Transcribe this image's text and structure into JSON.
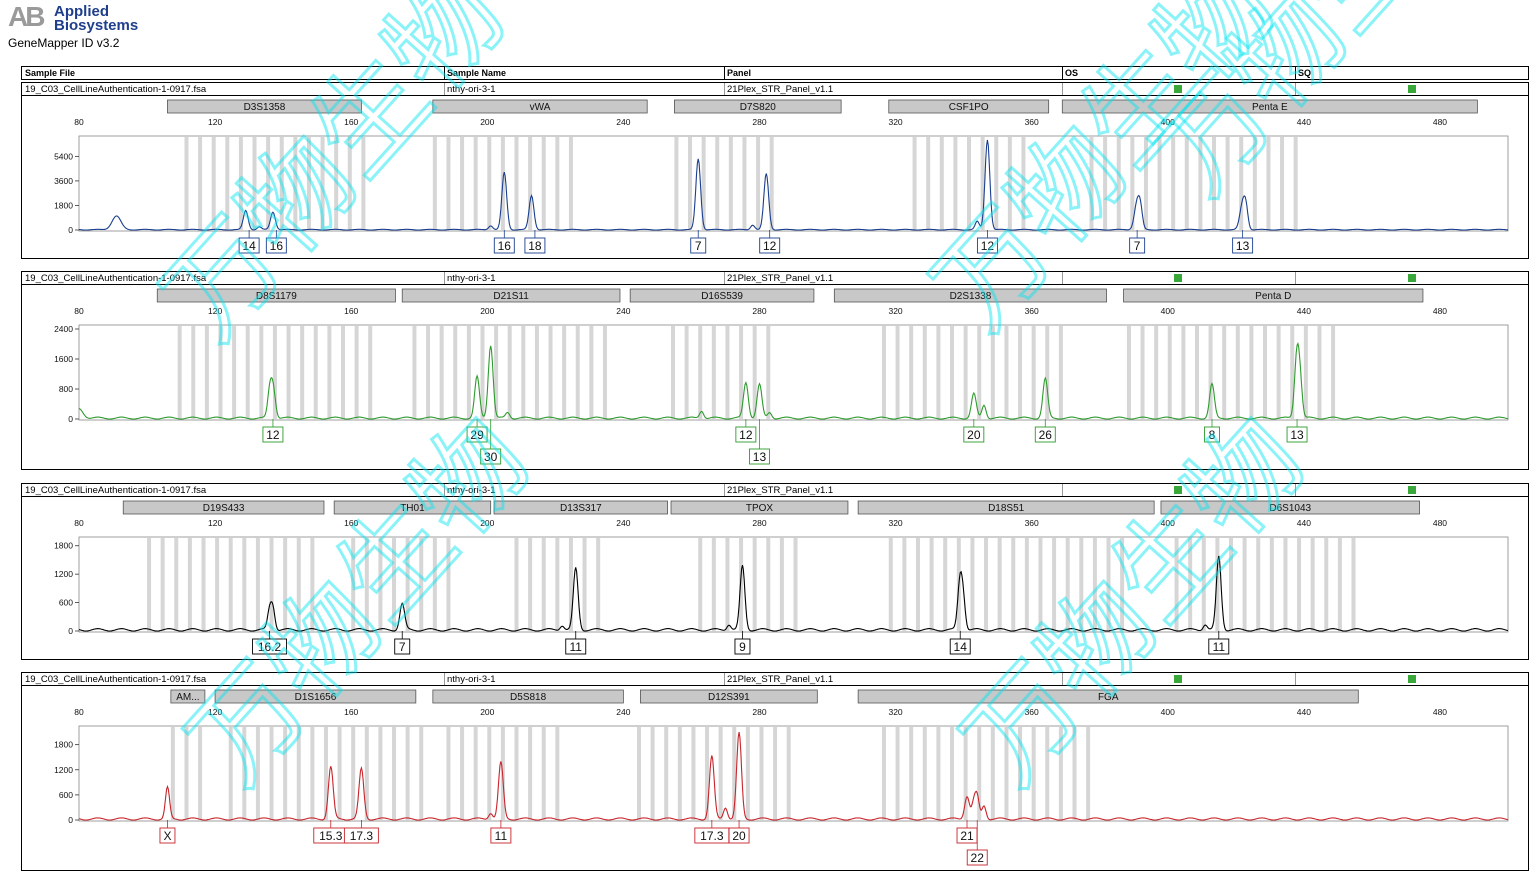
{
  "app": {
    "logo_mark": "AB",
    "logo_line1": "Applied",
    "logo_line2": "Biosystems",
    "title": "GeneMapper ID v3.2"
  },
  "header": {
    "sample_file": "Sample File",
    "sample_name": "Sample Name",
    "panel": "Panel",
    "os": "OS",
    "sq": "SQ"
  },
  "watermark": {
    "text": "万物生物",
    "color": "#00e5f0"
  },
  "colors": {
    "blue": "#1a3f8f",
    "green": "#2e9b2e",
    "black": "#000000",
    "red": "#c8242a",
    "bin": "#d6d6d6",
    "marker": "#c8c8c8",
    "qc": "#3aa73a"
  },
  "panels": [
    {
      "sample_file": "19_C03_CellLineAuthentication-1-0917.fsa",
      "sample_name": "nthy-ori-3-1",
      "panel": "21Plex_STR_Panel_v1.1",
      "dye": "blue",
      "xticks": [
        "80",
        "120",
        "160",
        "200",
        "240",
        "280",
        "320",
        "360",
        "400",
        "440",
        "480"
      ],
      "yticks": [
        "0",
        "1800",
        "3600",
        "5400"
      ],
      "ymax": 6600,
      "markers": [
        {
          "name": "D3S1358",
          "start": 106,
          "end": 163
        },
        {
          "name": "vWA",
          "start": 184,
          "end": 247
        },
        {
          "name": "D7S820",
          "start": 255,
          "end": 304
        },
        {
          "name": "CSF1PO",
          "start": 318,
          "end": 365
        },
        {
          "name": "Penta E",
          "start": 369,
          "end": 491
        }
      ],
      "bins": [
        [
          111,
          163
        ],
        [
          184,
          226
        ],
        [
          255,
          285
        ],
        [
          325,
          360
        ],
        [
          377,
          438
        ]
      ],
      "peaks": [
        {
          "x": 91,
          "h": 1000,
          "w": 1.3
        },
        {
          "x": 129,
          "h": 1400,
          "w": 0.7
        },
        {
          "x": 137,
          "h": 1300,
          "w": 0.7
        },
        {
          "x": 133,
          "h": 200,
          "w": 0.6
        },
        {
          "x": 205,
          "h": 4200,
          "w": 0.7
        },
        {
          "x": 213,
          "h": 2500,
          "w": 0.7
        },
        {
          "x": 201,
          "h": 300,
          "w": 0.6
        },
        {
          "x": 262,
          "h": 5200,
          "w": 0.7
        },
        {
          "x": 282,
          "h": 4100,
          "w": 0.7
        },
        {
          "x": 278,
          "h": 350,
          "w": 0.6
        },
        {
          "x": 347,
          "h": 6600,
          "w": 0.7
        },
        {
          "x": 344,
          "h": 600,
          "w": 0.6
        },
        {
          "x": 391,
          "h": 2000,
          "w": 0.8
        },
        {
          "x": 392,
          "h": 1200,
          "w": 0.6
        },
        {
          "x": 422,
          "h": 1900,
          "w": 0.8
        },
        {
          "x": 423,
          "h": 1300,
          "w": 0.6
        }
      ],
      "alleles": [
        {
          "label": "14",
          "x": 130,
          "row": 0
        },
        {
          "label": "16",
          "x": 138,
          "row": 0
        },
        {
          "label": "16",
          "x": 205,
          "row": 0
        },
        {
          "label": "18",
          "x": 214,
          "row": 0
        },
        {
          "label": "7",
          "x": 262,
          "row": 0
        },
        {
          "label": "12",
          "x": 283,
          "row": 0
        },
        {
          "label": "12",
          "x": 347,
          "row": 0
        },
        {
          "label": "7",
          "x": 391,
          "row": 0
        },
        {
          "label": "13",
          "x": 422,
          "row": 0
        }
      ]
    },
    {
      "sample_file": "19_C03_CellLineAuthentication-1-0917.fsa",
      "sample_name": "nthy-ori-3-1",
      "panel": "21Plex_STR_Panel_v1.1",
      "dye": "green",
      "xticks": [
        "80",
        "120",
        "160",
        "200",
        "240",
        "280",
        "320",
        "360",
        "400",
        "440",
        "480"
      ],
      "yticks": [
        "0",
        "800",
        "1600",
        "2400"
      ],
      "ymax": 2400,
      "markers": [
        {
          "name": "D8S1179",
          "start": 103,
          "end": 173
        },
        {
          "name": "D21S11",
          "start": 175,
          "end": 239
        },
        {
          "name": "D16S539",
          "start": 242,
          "end": 296
        },
        {
          "name": "D2S1338",
          "start": 302,
          "end": 382
        },
        {
          "name": "Penta D",
          "start": 387,
          "end": 475
        }
      ],
      "bins": [
        [
          109,
          166
        ],
        [
          178,
          237
        ],
        [
          254,
          285
        ],
        [
          316,
          369
        ],
        [
          388,
          449
        ]
      ],
      "peaks": [
        {
          "x": 80,
          "h": 250,
          "w": 1.2
        },
        {
          "x": 136,
          "h": 600,
          "w": 0.6
        },
        {
          "x": 137,
          "h": 850,
          "w": 0.7
        },
        {
          "x": 197,
          "h": 1100,
          "w": 0.7
        },
        {
          "x": 201,
          "h": 1950,
          "w": 0.7
        },
        {
          "x": 206,
          "h": 150,
          "w": 0.6
        },
        {
          "x": 263,
          "h": 200,
          "w": 0.6
        },
        {
          "x": 276,
          "h": 950,
          "w": 0.7
        },
        {
          "x": 280,
          "h": 900,
          "w": 0.7
        },
        {
          "x": 283,
          "h": 150,
          "w": 0.6
        },
        {
          "x": 343,
          "h": 650,
          "w": 0.7
        },
        {
          "x": 346,
          "h": 350,
          "w": 0.6
        },
        {
          "x": 364,
          "h": 1050,
          "w": 0.7
        },
        {
          "x": 413,
          "h": 900,
          "w": 0.7
        },
        {
          "x": 438,
          "h": 1800,
          "w": 0.7
        },
        {
          "x": 439,
          "h": 700,
          "w": 0.6
        }
      ],
      "alleles": [
        {
          "label": "12",
          "x": 137,
          "row": 0
        },
        {
          "label": "29",
          "x": 197,
          "row": 0
        },
        {
          "label": "30",
          "x": 201,
          "row": 1
        },
        {
          "label": "12",
          "x": 276,
          "row": 0
        },
        {
          "label": "13",
          "x": 280,
          "row": 1
        },
        {
          "label": "20",
          "x": 343,
          "row": 0
        },
        {
          "label": "26",
          "x": 364,
          "row": 0
        },
        {
          "label": "8",
          "x": 413,
          "row": 0
        },
        {
          "label": "13",
          "x": 438,
          "row": 0
        }
      ]
    },
    {
      "sample_file": "19_C03_CellLineAuthentication-1-0917.fsa",
      "sample_name": "nthy-ori-3-1",
      "panel": "21Plex_STR_Panel_v1.1",
      "dye": "black",
      "xticks": [
        "80",
        "120",
        "160",
        "200",
        "240",
        "280",
        "320",
        "360",
        "400",
        "440",
        "480"
      ],
      "yticks": [
        "0",
        "600",
        "1200",
        "1800"
      ],
      "ymax": 1900,
      "markers": [
        {
          "name": "D19S433",
          "start": 93,
          "end": 152
        },
        {
          "name": "TH01",
          "start": 155,
          "end": 201
        },
        {
          "name": "D13S317",
          "start": 202,
          "end": 253
        },
        {
          "name": "TPOX",
          "start": 254,
          "end": 306
        },
        {
          "name": "D18S51",
          "start": 309,
          "end": 396
        },
        {
          "name": "D6S1043",
          "start": 398,
          "end": 474
        }
      ],
      "bins": [
        [
          100,
          149
        ],
        [
          160,
          188
        ],
        [
          208,
          235
        ],
        [
          262,
          290
        ],
        [
          318,
          388
        ],
        [
          402,
          457
        ]
      ],
      "peaks": [
        {
          "x": 136,
          "h": 400,
          "w": 0.6
        },
        {
          "x": 137,
          "h": 450,
          "w": 0.6
        },
        {
          "x": 175,
          "h": 550,
          "w": 0.7
        },
        {
          "x": 226,
          "h": 1300,
          "w": 0.7
        },
        {
          "x": 222,
          "h": 100,
          "w": 0.6
        },
        {
          "x": 275,
          "h": 1350,
          "w": 0.7
        },
        {
          "x": 271,
          "h": 120,
          "w": 0.6
        },
        {
          "x": 339,
          "h": 1100,
          "w": 0.7
        },
        {
          "x": 340,
          "h": 450,
          "w": 0.6
        },
        {
          "x": 415,
          "h": 1550,
          "w": 0.7
        },
        {
          "x": 411,
          "h": 120,
          "w": 0.6
        }
      ],
      "alleles": [
        {
          "label": "16.2",
          "x": 136,
          "row": 0
        },
        {
          "label": "7",
          "x": 175,
          "row": 0
        },
        {
          "label": "11",
          "x": 226,
          "row": 0
        },
        {
          "label": "9",
          "x": 275,
          "row": 0
        },
        {
          "label": "14",
          "x": 339,
          "row": 0
        },
        {
          "label": "11",
          "x": 415,
          "row": 0
        }
      ]
    },
    {
      "sample_file": "19_C03_CellLineAuthentication-1-0917.fsa",
      "sample_name": "nthy-ori-3-1",
      "panel": "21Plex_STR_Panel_v1.1",
      "dye": "red",
      "xticks": [
        "80",
        "120",
        "160",
        "200",
        "240",
        "280",
        "320",
        "360",
        "400",
        "440",
        "480"
      ],
      "yticks": [
        "0",
        "600",
        "1200",
        "1800"
      ],
      "ymax": 2150,
      "markers": [
        {
          "name": "AM...",
          "start": 107,
          "end": 117
        },
        {
          "name": "D1S1656",
          "start": 120,
          "end": 179
        },
        {
          "name": "D5S818",
          "start": 184,
          "end": 240
        },
        {
          "name": "D12S391",
          "start": 245,
          "end": 297
        },
        {
          "name": "FGA",
          "start": 309,
          "end": 456
        }
      ],
      "bins": [
        [
          107,
          117
        ],
        [
          124,
          180
        ],
        [
          188,
          222
        ],
        [
          244,
          290
        ],
        [
          316,
          376
        ]
      ],
      "peaks": [
        {
          "x": 106,
          "h": 750,
          "w": 0.6
        },
        {
          "x": 154,
          "h": 1250,
          "w": 0.7
        },
        {
          "x": 163,
          "h": 1200,
          "w": 0.7
        },
        {
          "x": 204,
          "h": 1350,
          "w": 0.7
        },
        {
          "x": 201,
          "h": 150,
          "w": 0.6
        },
        {
          "x": 266,
          "h": 1500,
          "w": 0.7
        },
        {
          "x": 270,
          "h": 280,
          "w": 0.6
        },
        {
          "x": 274,
          "h": 2050,
          "w": 0.7
        },
        {
          "x": 341,
          "h": 550,
          "w": 0.7
        },
        {
          "x": 343,
          "h": 380,
          "w": 0.6
        },
        {
          "x": 344,
          "h": 500,
          "w": 0.6
        },
        {
          "x": 346,
          "h": 320,
          "w": 0.6
        }
      ],
      "alleles": [
        {
          "label": "X",
          "x": 106,
          "row": 0
        },
        {
          "label": "15.3",
          "x": 154,
          "row": 0
        },
        {
          "label": "17.3",
          "x": 163,
          "row": 0
        },
        {
          "label": "11",
          "x": 204,
          "row": 0
        },
        {
          "label": "17.3",
          "x": 266,
          "row": 0
        },
        {
          "label": "20",
          "x": 274,
          "row": 0
        },
        {
          "label": "21",
          "x": 341,
          "row": 0
        },
        {
          "label": "22",
          "x": 344,
          "row": 1
        }
      ]
    }
  ],
  "chart_data": [
    {
      "type": "line",
      "title": "",
      "xlabel": "",
      "ylabel": "",
      "series": [
        {
          "name": "",
          "dye": "blue"
        }
      ],
      "x_range": [
        80,
        500
      ],
      "ylim": [
        0,
        6600
      ],
      "y_ticks": [
        0,
        1800,
        3600,
        5400
      ],
      "loci": [
        "D3S1358",
        "vWA",
        "D7S820",
        "CSF1PO",
        "Penta E"
      ],
      "allele_calls": [
        {
          "locus": "D3S1358",
          "alleles": [
            "14",
            "16"
          ]
        },
        {
          "locus": "vWA",
          "alleles": [
            "16",
            "18"
          ]
        },
        {
          "locus": "D7S820",
          "alleles": [
            "7",
            "12"
          ]
        },
        {
          "locus": "CSF1PO",
          "alleles": [
            "12"
          ]
        },
        {
          "locus": "Penta E",
          "alleles": [
            "7",
            "13"
          ]
        }
      ]
    },
    {
      "type": "line",
      "title": "",
      "xlabel": "",
      "ylabel": "",
      "series": [
        {
          "name": "",
          "dye": "green"
        }
      ],
      "x_range": [
        80,
        500
      ],
      "ylim": [
        0,
        2400
      ],
      "y_ticks": [
        0,
        800,
        1600,
        2400
      ],
      "loci": [
        "D8S1179",
        "D21S11",
        "D16S539",
        "D2S1338",
        "Penta D"
      ],
      "allele_calls": [
        {
          "locus": "D8S1179",
          "alleles": [
            "12"
          ]
        },
        {
          "locus": "D21S11",
          "alleles": [
            "29",
            "30"
          ]
        },
        {
          "locus": "D16S539",
          "alleles": [
            "12",
            "13"
          ]
        },
        {
          "locus": "D2S1338",
          "alleles": [
            "20",
            "26"
          ]
        },
        {
          "locus": "Penta D",
          "alleles": [
            "8",
            "13"
          ]
        }
      ]
    },
    {
      "type": "line",
      "title": "",
      "xlabel": "",
      "ylabel": "",
      "series": [
        {
          "name": "",
          "dye": "black"
        }
      ],
      "x_range": [
        80,
        500
      ],
      "ylim": [
        0,
        1900
      ],
      "y_ticks": [
        0,
        600,
        1200,
        1800
      ],
      "loci": [
        "D19S433",
        "TH01",
        "D13S317",
        "TPOX",
        "D18S51",
        "D6S1043"
      ],
      "allele_calls": [
        {
          "locus": "D19S433",
          "alleles": [
            "16.2"
          ]
        },
        {
          "locus": "TH01",
          "alleles": [
            "7"
          ]
        },
        {
          "locus": "D13S317",
          "alleles": [
            "11"
          ]
        },
        {
          "locus": "TPOX",
          "alleles": [
            "9"
          ]
        },
        {
          "locus": "D18S51",
          "alleles": [
            "14"
          ]
        },
        {
          "locus": "D6S1043",
          "alleles": [
            "11"
          ]
        }
      ]
    },
    {
      "type": "line",
      "title": "",
      "xlabel": "",
      "ylabel": "",
      "series": [
        {
          "name": "",
          "dye": "red"
        }
      ],
      "x_range": [
        80,
        500
      ],
      "ylim": [
        0,
        2150
      ],
      "y_ticks": [
        0,
        600,
        1200,
        1800
      ],
      "loci": [
        "AM...",
        "D1S1656",
        "D5S818",
        "D12S391",
        "FGA"
      ],
      "allele_calls": [
        {
          "locus": "AM...",
          "alleles": [
            "X"
          ]
        },
        {
          "locus": "D1S1656",
          "alleles": [
            "15.3",
            "17.3"
          ]
        },
        {
          "locus": "D5S818",
          "alleles": [
            "11"
          ]
        },
        {
          "locus": "D12S391",
          "alleles": [
            "17.3",
            "20"
          ]
        },
        {
          "locus": "FGA",
          "alleles": [
            "21",
            "22"
          ]
        }
      ]
    }
  ]
}
